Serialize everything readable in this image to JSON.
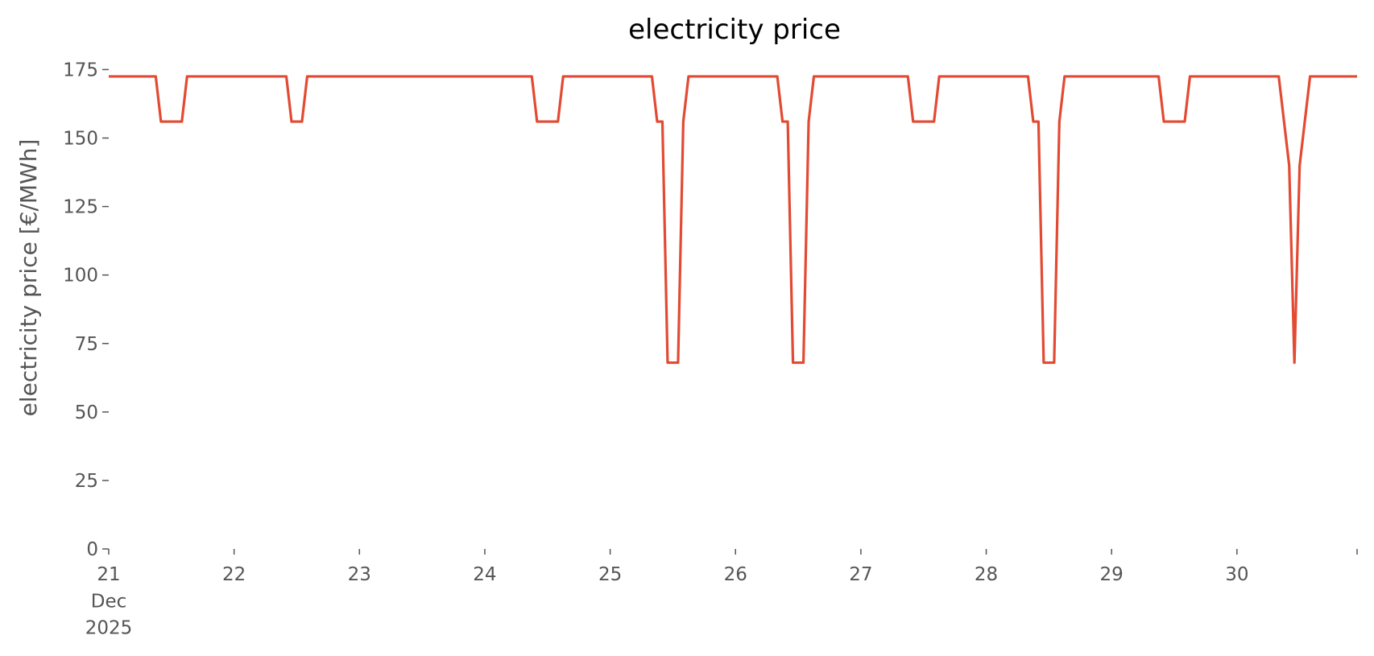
{
  "chart_data": {
    "type": "line",
    "title": "electricity price",
    "y_label": "electricity price [€/MWh]",
    "x": [
      21,
      21.375,
      21.4167,
      21.5833,
      21.625,
      22.4167,
      22.4583,
      22.5417,
      22.5833,
      24.375,
      24.4167,
      24.5833,
      24.625,
      25.3333,
      25.375,
      25.4167,
      25.4583,
      25.5417,
      25.5833,
      25.625,
      26.3333,
      26.375,
      26.4167,
      26.4583,
      26.5417,
      26.5833,
      26.625,
      27.375,
      27.4167,
      27.5833,
      27.625,
      28.3333,
      28.375,
      28.4167,
      28.4583,
      28.5417,
      28.5833,
      28.625,
      29.375,
      29.4167,
      29.5833,
      29.625,
      30.3333,
      30.4167,
      30.4583,
      30.5,
      30.5833,
      30.9583
    ],
    "series": [
      {
        "name": "electricity price",
        "color": "#E24A33",
        "values": [
          172.5,
          172.5,
          156,
          156,
          172.5,
          172.5,
          156,
          156,
          172.5,
          172.5,
          156,
          156,
          172.5,
          172.5,
          156,
          156,
          68,
          68,
          156,
          172.5,
          172.5,
          156,
          156,
          68,
          68,
          156,
          172.5,
          172.5,
          156,
          156,
          172.5,
          172.5,
          156,
          156,
          68,
          68,
          156,
          172.5,
          172.5,
          156,
          156,
          172.5,
          172.5,
          140,
          68,
          140,
          172.5,
          172.5
        ]
      }
    ],
    "xlim": [
      21,
      30.9583
    ],
    "xticks": [
      {
        "value": 21,
        "label": "21\nDec\n2025"
      },
      22,
      23,
      24,
      25,
      26,
      27,
      28,
      29,
      30
    ],
    "ylim": [
      0,
      181
    ],
    "yticks": [
      0,
      25,
      50,
      75,
      100,
      125,
      150,
      175
    ],
    "grid": false
  }
}
